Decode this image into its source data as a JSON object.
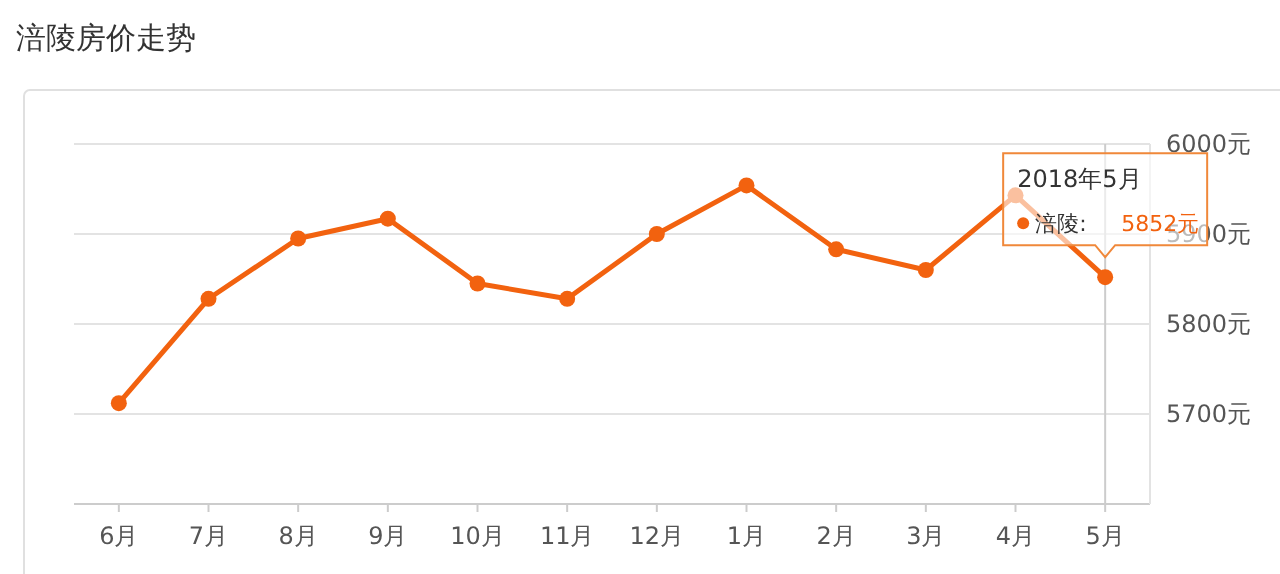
{
  "chart_data": {
    "type": "line",
    "title": "涪陵房价走势",
    "categories": [
      "6月",
      "7月",
      "8月",
      "9月",
      "10月",
      "11月",
      "12月",
      "1月",
      "2月",
      "3月",
      "4月",
      "5月"
    ],
    "series": [
      {
        "name": "涪陵:",
        "color": "#f2620f",
        "values": [
          5712,
          5828,
          5895,
          5917,
          5845,
          5828,
          5900,
          5954,
          5883,
          5860,
          5943,
          5852
        ],
        "value_labels": [
          null,
          null,
          null,
          null,
          null,
          null,
          null,
          null,
          null,
          null,
          null,
          "5852元"
        ]
      }
    ],
    "ylim": [
      5600,
      6000
    ],
    "yticks": [
      {
        "value": 5600,
        "label": null
      },
      {
        "value": 5700,
        "label": "5700元"
      },
      {
        "value": 5800,
        "label": "5800元"
      },
      {
        "value": 5900,
        "label": "5900元"
      },
      {
        "value": 6000,
        "label": "6000元"
      }
    ],
    "annotations": [
      "2018年5月"
    ],
    "ref_lines": [
      {
        "axis": "x",
        "value": "5月",
        "color": "#cccccc"
      }
    ],
    "grid": "y",
    "legend": "top right",
    "marker": "circle",
    "line_style": "solid"
  }
}
